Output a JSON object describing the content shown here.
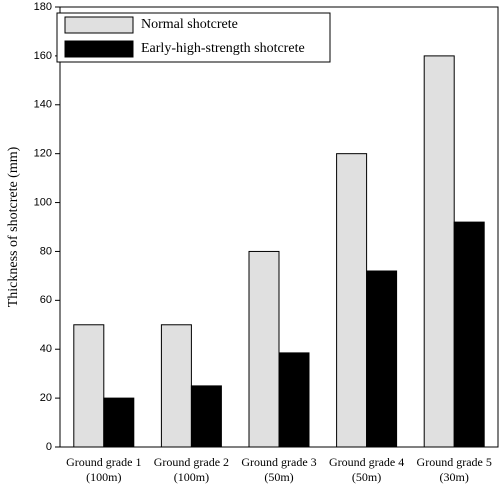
{
  "chart_data": {
    "type": "bar",
    "y_label": "Thickness of shotcrete (mm)",
    "categories": [
      [
        "Ground grade 1",
        "(100m)"
      ],
      [
        "Ground grade 2",
        "(100m)"
      ],
      [
        "Ground grade 3",
        "(50m)"
      ],
      [
        "Ground grade 4",
        "(50m)"
      ],
      [
        "Ground grade 5",
        "(30m)"
      ]
    ],
    "series": [
      {
        "name": "Normal shotcrete",
        "color": "#e0e0e0",
        "values": [
          50,
          50,
          80,
          120,
          160
        ]
      },
      {
        "name": "Early-high-strength shotcrete",
        "color": "#000000",
        "values": [
          20,
          25,
          38.5,
          72,
          92
        ]
      }
    ],
    "ylim": [
      0,
      180
    ],
    "yticks": [
      0,
      20,
      40,
      60,
      80,
      100,
      120,
      140,
      160,
      180
    ],
    "grid": false,
    "legend": "upper left"
  }
}
